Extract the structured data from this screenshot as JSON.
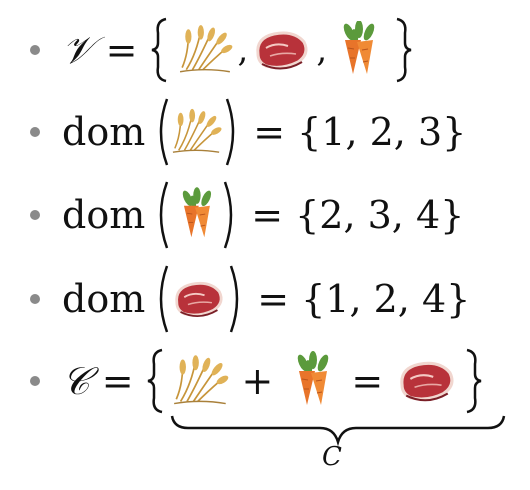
{
  "lines": [
    {
      "lhs": "𝒱",
      "eq": "=",
      "items": [
        "wheat-icon",
        "steak-icon",
        "carrot-icon"
      ]
    },
    {
      "fn": "dom",
      "arg": "wheat-icon",
      "eq": "=",
      "rhs": "{1, 2, 3}"
    },
    {
      "fn": "dom",
      "arg": "carrot-icon",
      "eq": "=",
      "rhs": "{2, 3, 4}"
    },
    {
      "fn": "dom",
      "arg": "steak-icon",
      "eq": "=",
      "rhs": "{1, 2, 4}"
    },
    {
      "lhs": "𝒞",
      "eq": "=",
      "plus": "+",
      "eq2": "=",
      "items": [
        "wheat-icon",
        "carrot-icon",
        "steak-icon"
      ],
      "underbrace_label": "C"
    }
  ],
  "colors": {
    "bullet": "#8a8a8a",
    "wheat": "#d9a441",
    "steak": "#b8323a",
    "carrot": "#e8742a",
    "leaf": "#4f8a35"
  }
}
